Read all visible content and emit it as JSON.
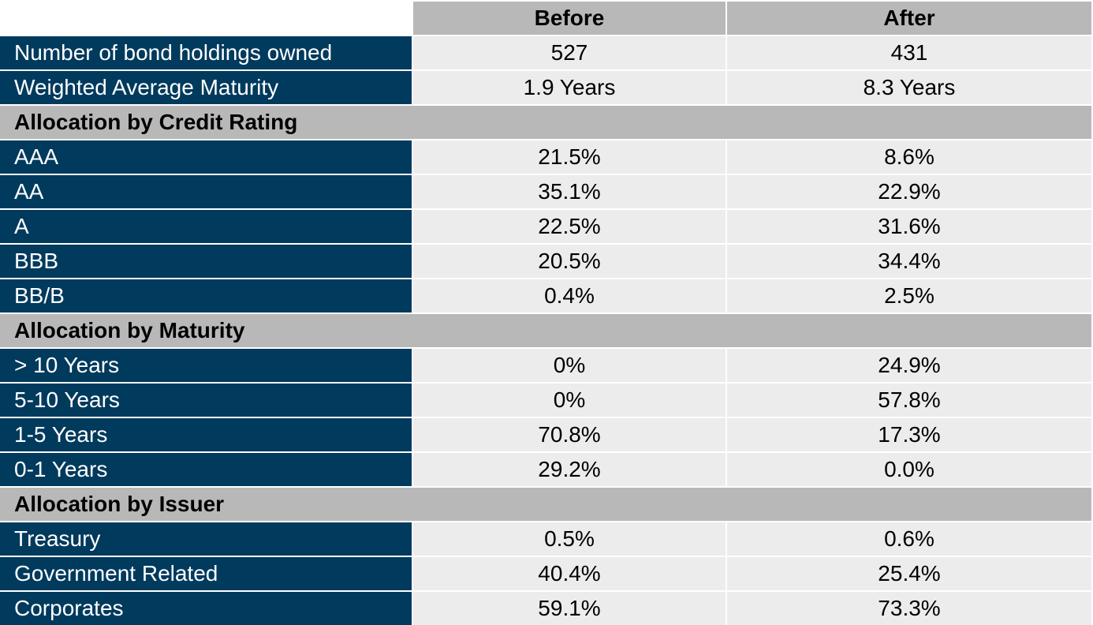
{
  "chart_data": {
    "type": "table",
    "columns": [
      "Before",
      "After"
    ],
    "rows": [
      {
        "kind": "data",
        "label": "Number of bond holdings owned",
        "before": "527",
        "after": "431"
      },
      {
        "kind": "data",
        "label": "Weighted Average Maturity",
        "before": "1.9 Years",
        "after": "8.3 Years"
      },
      {
        "kind": "section",
        "label": "Allocation by Credit Rating"
      },
      {
        "kind": "data",
        "label": "AAA",
        "before": "21.5%",
        "after": "8.6%"
      },
      {
        "kind": "data",
        "label": "AA",
        "before": "35.1%",
        "after": "22.9%"
      },
      {
        "kind": "data",
        "label": "A",
        "before": "22.5%",
        "after": "31.6%"
      },
      {
        "kind": "data",
        "label": "BBB",
        "before": "20.5%",
        "after": "34.4%"
      },
      {
        "kind": "data",
        "label": "BB/B",
        "before": "0.4%",
        "after": "2.5%"
      },
      {
        "kind": "section",
        "label": "Allocation by Maturity"
      },
      {
        "kind": "data",
        "label": "> 10 Years",
        "before": "0%",
        "after": "24.9%"
      },
      {
        "kind": "data",
        "label": "5-10 Years",
        "before": "0%",
        "after": "57.8%"
      },
      {
        "kind": "data",
        "label": "1-5 Years",
        "before": "70.8%",
        "after": "17.3%"
      },
      {
        "kind": "data",
        "label": "0-1 Years",
        "before": "29.2%",
        "after": "0.0%"
      },
      {
        "kind": "section",
        "label": "Allocation by Issuer"
      },
      {
        "kind": "data",
        "label": "Treasury",
        "before": "0.5%",
        "after": "0.6%"
      },
      {
        "kind": "data",
        "label": "Government Related",
        "before": "40.4%",
        "after": "25.4%"
      },
      {
        "kind": "data",
        "label": "Corporates",
        "before": "59.1%",
        "after": "73.3%"
      }
    ]
  },
  "colors": {
    "label_bg": "#003a5d",
    "label_text": "#ffffff",
    "header_bg": "#b8b8b8",
    "value_bg": "#ececec"
  }
}
